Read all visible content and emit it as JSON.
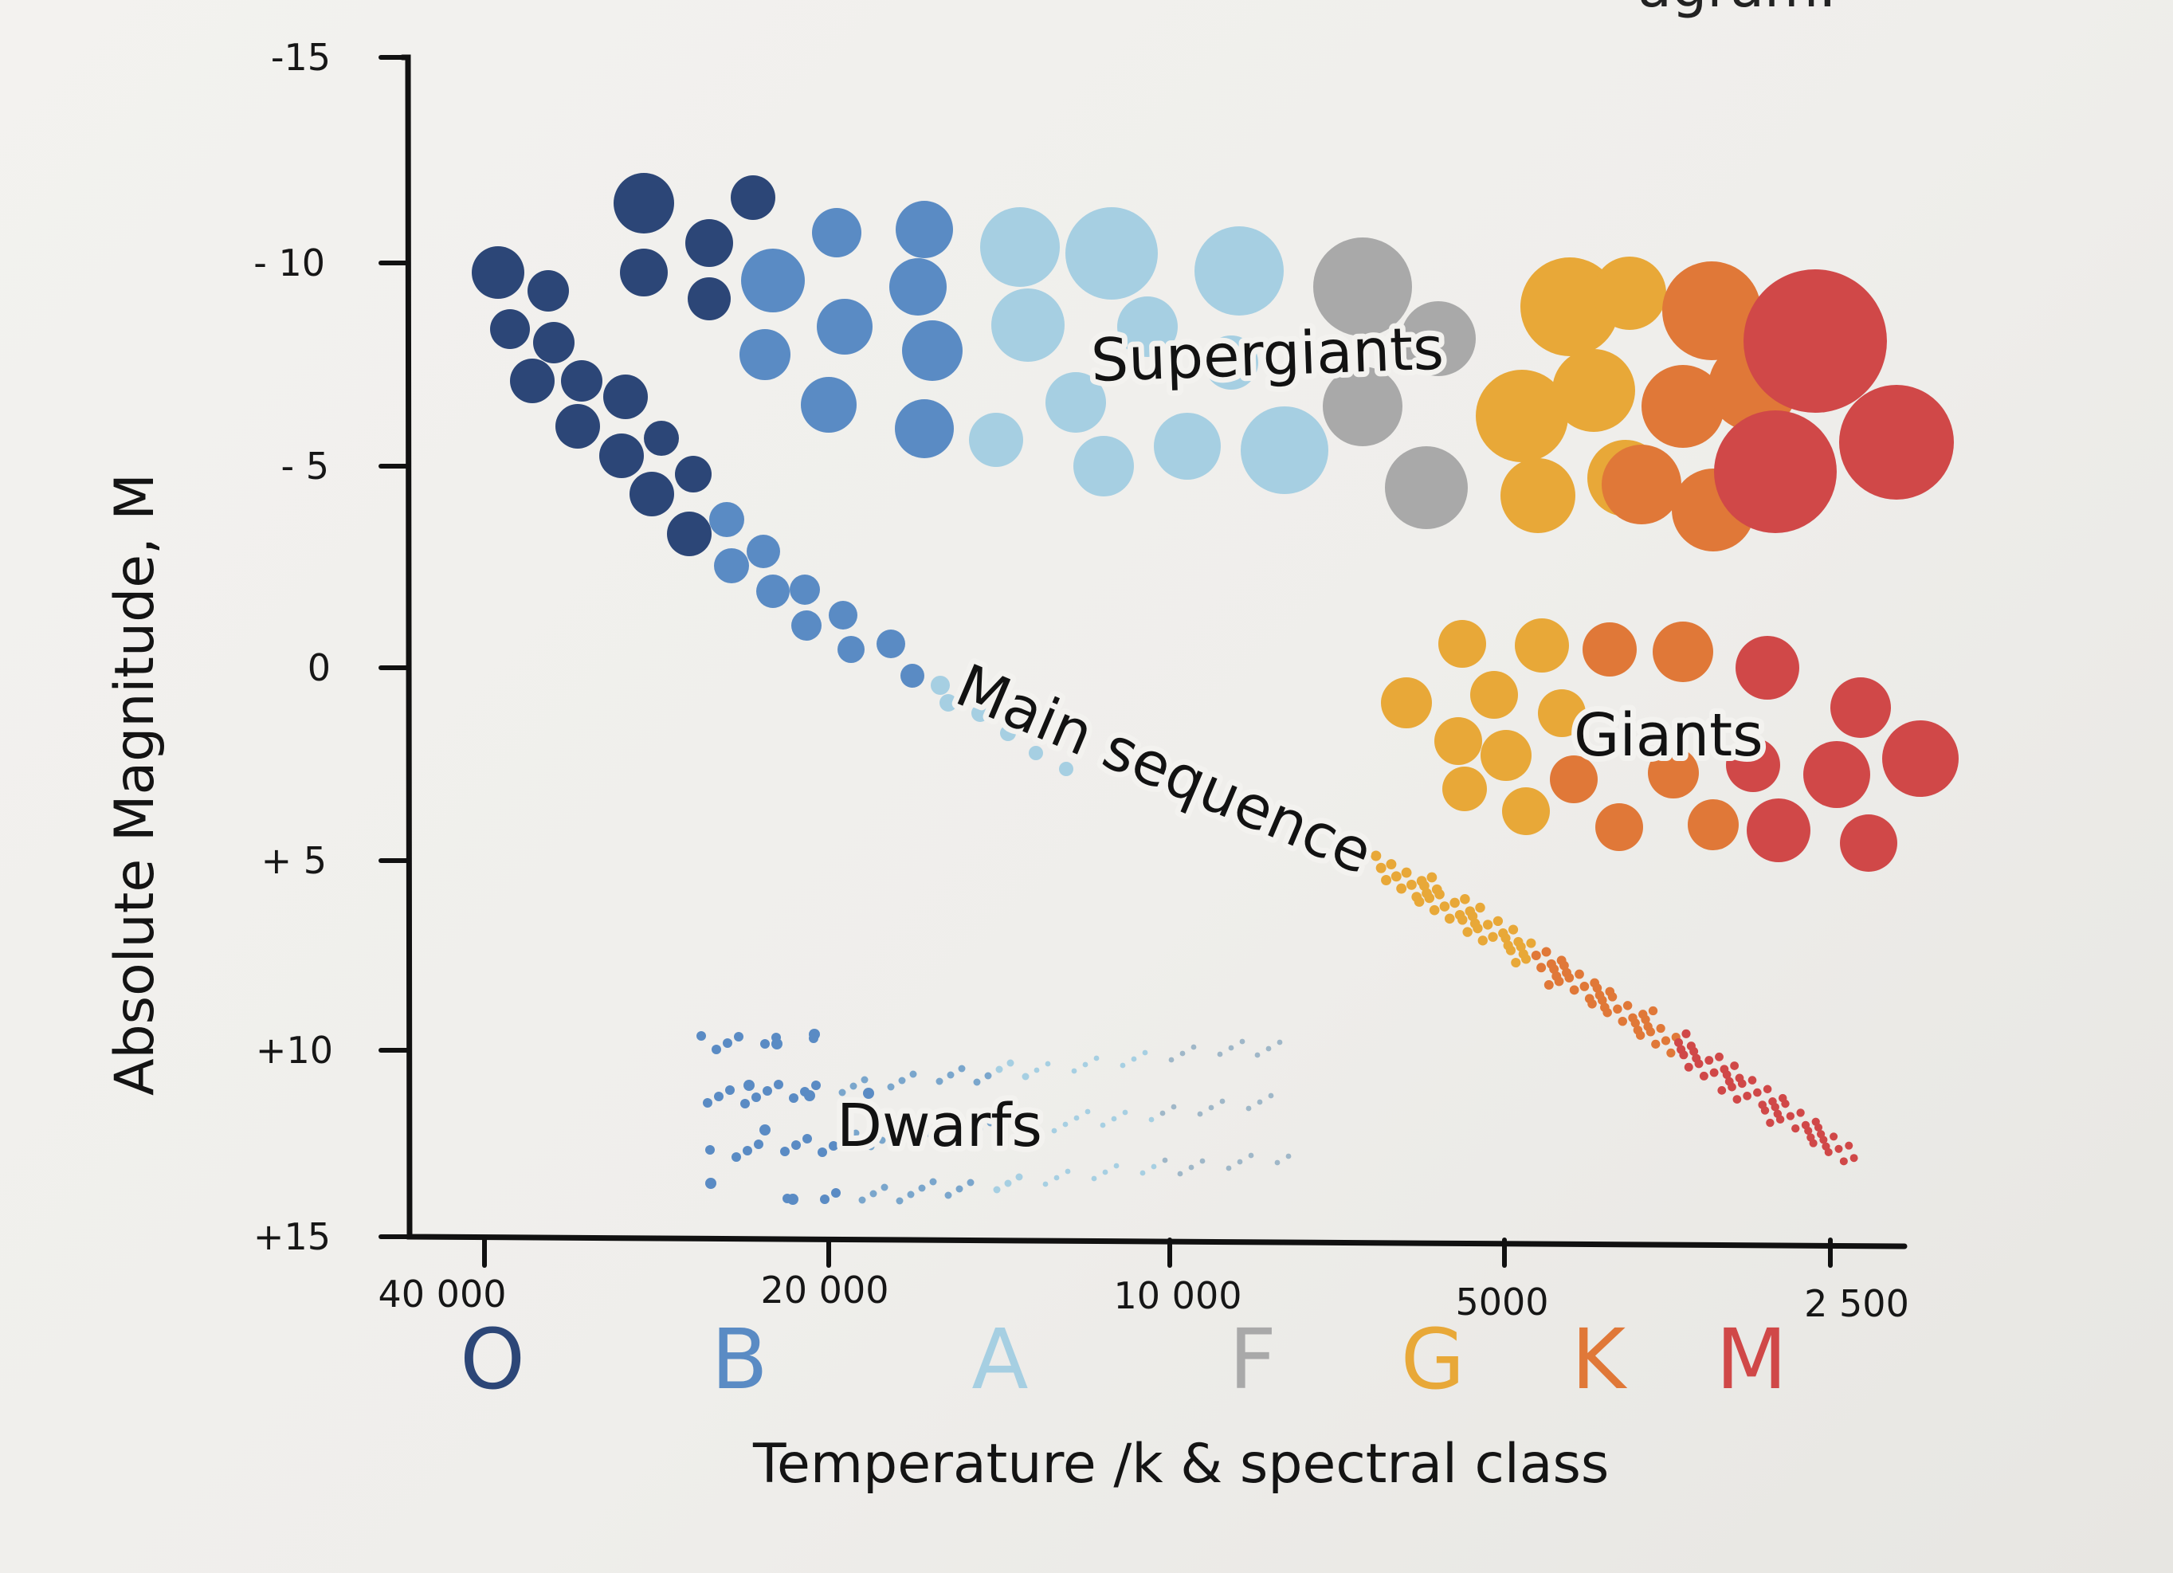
{
  "page_fragment": "agram.",
  "chart_data": {
    "type": "scatter",
    "title": "",
    "xlabel": "Temperature /k  & spectral class",
    "ylabel": "Absolute Magnitude, M",
    "x_ticks": [
      "40 000",
      "20 000",
      "10 000",
      "5000",
      "2 500"
    ],
    "y_ticks": [
      "-15",
      "- 10",
      "- 5",
      "0",
      "+ 5",
      "+10",
      "+15"
    ],
    "spectral_classes": [
      {
        "letter": "O",
        "color": "#2c4677"
      },
      {
        "letter": "B",
        "color": "#5a8bc4"
      },
      {
        "letter": "A",
        "color": "#a6cfe2"
      },
      {
        "letter": "F",
        "color": "#a9a9a9"
      },
      {
        "letter": "G",
        "color": "#e8a838"
      },
      {
        "letter": "K",
        "color": "#e07838"
      },
      {
        "letter": "M",
        "color": "#d04848"
      }
    ],
    "series": [
      {
        "name": "Supergiants",
        "label": "Supergiants"
      },
      {
        "name": "Main sequence",
        "label": "Main sequence"
      },
      {
        "name": "Giants",
        "label": "Giants"
      },
      {
        "name": "Dwarfs",
        "label": "Dwarfs"
      }
    ]
  }
}
